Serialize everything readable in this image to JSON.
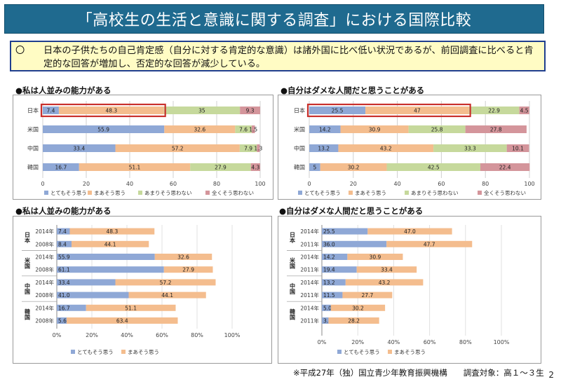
{
  "page": {
    "title": "「高校生の生活と意識に関する調査」における国際比較",
    "summary_mark": "〇",
    "summary": "日本の子供たちの自己肯定感（自分に対する肯定的な意識）は諸外国に比べ低い状況であるが、前回調査に比べると肯定的な回答が増加し、否定的な回答が減少している。",
    "footer": "※平成27年（独）国立青少年教育振興機構　　調査対象：高１～３生",
    "page_number": "2"
  },
  "colors": {
    "very": "#8fa8d6",
    "some": "#f4bd8e",
    "notmuch": "#c6d99c",
    "notatall": "#d4959b",
    "highlight": "#c9302c"
  },
  "chart_data": [
    {
      "id": "c1",
      "type": "bar",
      "orientation": "horizontal",
      "stacked": true,
      "title": "●私は人並みの能力がある",
      "categories": [
        "日本",
        "米国",
        "中国",
        "韓国"
      ],
      "series": [
        {
          "name": "とてもそう思う",
          "values": [
            7.4,
            55.9,
            33.4,
            16.7
          ],
          "labels": [
            "7.4",
            "55.9",
            "33.4",
            "16.7"
          ]
        },
        {
          "name": "まあそう思う",
          "values": [
            48.3,
            32.6,
            57.2,
            51.1
          ],
          "labels": [
            "48.3",
            "32.6",
            "57.2",
            "51.1"
          ]
        },
        {
          "name": "あまりそう思わない",
          "values": [
            35,
            7.6,
            7.9,
            27.9
          ],
          "labels": [
            "35",
            "7.6",
            "7.9",
            "27.9"
          ]
        },
        {
          "name": "全くそう思わない",
          "values": [
            9.3,
            1.5,
            1.3,
            4.3
          ],
          "labels": [
            "9.3",
            "1.5",
            "1.3",
            "4.3"
          ]
        }
      ],
      "xlim": [
        0,
        100
      ],
      "xticks": [
        0,
        20,
        40,
        60,
        80,
        100
      ],
      "legend": "bottom",
      "highlight": "日本"
    },
    {
      "id": "c2",
      "type": "bar",
      "orientation": "horizontal",
      "stacked": true,
      "title": "●自分はダメな人間だと思うことがある",
      "categories": [
        "日本",
        "米国",
        "中国",
        "韓国"
      ],
      "series": [
        {
          "name": "とてもそう思う",
          "values": [
            25.5,
            14.2,
            13.2,
            5
          ],
          "labels": [
            "25.5",
            "14.2",
            "13.2",
            "5"
          ]
        },
        {
          "name": "まあそう思う",
          "values": [
            47,
            30.9,
            43.2,
            30.2
          ],
          "labels": [
            "47",
            "30.9",
            "43.2",
            "30.2"
          ]
        },
        {
          "name": "あまりそう思わない",
          "values": [
            22.9,
            25.8,
            33.3,
            42.5
          ],
          "labels": [
            "22.9",
            "25.8",
            "33.3",
            "42.5"
          ]
        },
        {
          "name": "全くそう思わない",
          "values": [
            4.5,
            27.8,
            10.1,
            22.4
          ],
          "labels": [
            "4.5",
            "27.8",
            "10.1",
            "22.4"
          ]
        }
      ],
      "xlim": [
        0,
        100
      ],
      "xticks": [
        0,
        20,
        40,
        60,
        80,
        100
      ],
      "legend": "bottom",
      "highlight": "日本"
    },
    {
      "id": "c3",
      "type": "bar",
      "orientation": "horizontal",
      "stacked": true,
      "title": "●私は人並みの能力がある",
      "groups": [
        "日本",
        "米国",
        "中国",
        "韓国"
      ],
      "rows": [
        {
          "group": "日本",
          "year": "2014年",
          "values": [
            7.4,
            48.3
          ],
          "labels": [
            "7.4",
            "48.3"
          ]
        },
        {
          "group": "日本",
          "year": "2008年",
          "values": [
            8.4,
            44.1
          ],
          "labels": [
            "8.4",
            "44.1"
          ]
        },
        {
          "group": "米国",
          "year": "2014年",
          "values": [
            55.9,
            32.6
          ],
          "labels": [
            "55.9",
            "32.6"
          ]
        },
        {
          "group": "米国",
          "year": "2008年",
          "values": [
            61.1,
            27.9
          ],
          "labels": [
            "61.1",
            "27.9"
          ]
        },
        {
          "group": "中国",
          "year": "2014年",
          "values": [
            33.4,
            57.2
          ],
          "labels": [
            "33.4",
            "57.2"
          ]
        },
        {
          "group": "中国",
          "year": "2008年",
          "values": [
            41.0,
            44.1
          ],
          "labels": [
            "41.0",
            "44.1"
          ]
        },
        {
          "group": "韓国",
          "year": "2014年",
          "values": [
            16.7,
            51.1
          ],
          "labels": [
            "16.7",
            "51.1"
          ]
        },
        {
          "group": "韓国",
          "year": "2008年",
          "values": [
            5.6,
            63.4
          ],
          "labels": [
            "5.6",
            "63.4"
          ]
        }
      ],
      "series": [
        "とてもそう思う",
        "まあそう思う"
      ],
      "xlim": [
        0,
        100
      ],
      "xticks": [
        "0%",
        "20%",
        "40%",
        "60%",
        "80%",
        "100%"
      ],
      "legend": "bottom"
    },
    {
      "id": "c4",
      "type": "bar",
      "orientation": "horizontal",
      "stacked": true,
      "title": "●自分はダメな人間だと思うことがある",
      "groups": [
        "日本",
        "米国",
        "中国",
        "韓国"
      ],
      "rows": [
        {
          "group": "日本",
          "year": "2014年",
          "values": [
            25.5,
            47.0
          ],
          "labels": [
            "25.5",
            "47.0"
          ]
        },
        {
          "group": "日本",
          "year": "2011年",
          "values": [
            36.0,
            47.7
          ],
          "labels": [
            "36.0",
            "47.7"
          ]
        },
        {
          "group": "米国",
          "year": "2014年",
          "values": [
            14.2,
            30.9
          ],
          "labels": [
            "14.2",
            "30.9"
          ]
        },
        {
          "group": "米国",
          "year": "2011年",
          "values": [
            19.4,
            33.4
          ],
          "labels": [
            "19.4",
            "33.4"
          ]
        },
        {
          "group": "中国",
          "year": "2014年",
          "values": [
            13.2,
            43.2
          ],
          "labels": [
            "13.2",
            "43.2"
          ]
        },
        {
          "group": "中国",
          "year": "2011年",
          "values": [
            11.5,
            27.7
          ],
          "labels": [
            "11.5",
            "27.7"
          ]
        },
        {
          "group": "韓国",
          "year": "2014年",
          "values": [
            5.0,
            30.2
          ],
          "labels": [
            "5.0",
            "30.2"
          ]
        },
        {
          "group": "韓国",
          "year": "2011年",
          "values": [
            3.7,
            28.2
          ],
          "labels": [
            "3.7",
            "28.2"
          ]
        }
      ],
      "series": [
        "とてもそう思う",
        "まあそう思う"
      ],
      "xlim": [
        0,
        100
      ],
      "xticks": [
        "0%",
        "20%",
        "40%",
        "60%",
        "80%",
        "100%"
      ],
      "legend": "bottom"
    }
  ]
}
